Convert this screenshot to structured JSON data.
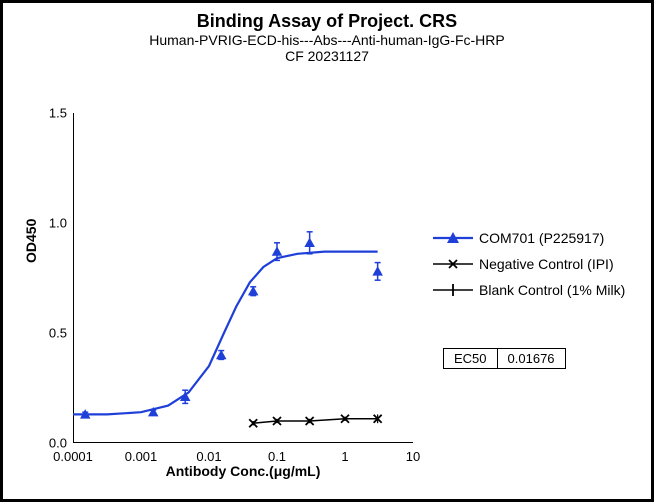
{
  "titles": {
    "main": "Binding Assay of Project. CRS",
    "sub": "Human-PVRIG-ECD-his---Abs---Anti-human-IgG-Fc-HRP",
    "sub2": "CF 20231127"
  },
  "axes": {
    "ylabel": "OD450",
    "xlabel": "Antibody Conc.(μg/mL)",
    "ylim": [
      0,
      1.5
    ],
    "yticks": [
      0.0,
      0.5,
      1.0,
      1.5
    ],
    "ytick_labels": [
      "0.0",
      "0.5",
      "1.0",
      "1.5"
    ],
    "xlim_log": [
      -4,
      1
    ],
    "xticks_log": [
      -4,
      -3,
      -2,
      -1,
      0,
      1
    ],
    "xtick_labels": [
      "0.0001",
      "0.001",
      "0.01",
      "0.1",
      "1",
      "10"
    ]
  },
  "series": {
    "com701": {
      "label": "COM701 (P225917)",
      "color": "#1f3fd9",
      "marker": "triangle",
      "points": [
        {
          "logx": -3.82,
          "y": 0.13,
          "err": 0.01
        },
        {
          "logx": -2.82,
          "y": 0.14,
          "err": 0.01
        },
        {
          "logx": -2.35,
          "y": 0.21,
          "err": 0.03
        },
        {
          "logx": -1.82,
          "y": 0.4,
          "err": 0.02
        },
        {
          "logx": -1.35,
          "y": 0.69,
          "err": 0.02
        },
        {
          "logx": -1.0,
          "y": 0.87,
          "err": 0.04
        },
        {
          "logx": -0.52,
          "y": 0.91,
          "err": 0.05
        },
        {
          "logx": 0.48,
          "y": 0.78,
          "err": 0.04
        }
      ],
      "fit": [
        {
          "logx": -4.0,
          "y": 0.13
        },
        {
          "logx": -3.5,
          "y": 0.13
        },
        {
          "logx": -3.0,
          "y": 0.14
        },
        {
          "logx": -2.6,
          "y": 0.17
        },
        {
          "logx": -2.3,
          "y": 0.23
        },
        {
          "logx": -2.0,
          "y": 0.35
        },
        {
          "logx": -1.78,
          "y": 0.5
        },
        {
          "logx": -1.6,
          "y": 0.62
        },
        {
          "logx": -1.4,
          "y": 0.73
        },
        {
          "logx": -1.2,
          "y": 0.8
        },
        {
          "logx": -1.0,
          "y": 0.84
        },
        {
          "logx": -0.7,
          "y": 0.86
        },
        {
          "logx": -0.3,
          "y": 0.87
        },
        {
          "logx": 0.48,
          "y": 0.87
        }
      ]
    },
    "neg": {
      "label": "Negative Control (IPI)",
      "color": "#000000",
      "marker": "x",
      "points": [
        {
          "logx": -1.35,
          "y": 0.09,
          "err": 0.01
        },
        {
          "logx": -1.0,
          "y": 0.1,
          "err": 0.01
        },
        {
          "logx": -0.52,
          "y": 0.1,
          "err": 0.01
        },
        {
          "logx": 0.0,
          "y": 0.11,
          "err": 0.01
        },
        {
          "logx": 0.48,
          "y": 0.11,
          "err": 0.02
        }
      ]
    },
    "blank": {
      "label": "Blank Control (1% Milk)",
      "color": "#000000",
      "marker": "plus-line"
    }
  },
  "ec50": {
    "label": "EC50",
    "value": "0.01676"
  },
  "plot_style": {
    "axis_color": "#000000",
    "axis_width": 2,
    "line_width": 2.2,
    "marker_size": 7,
    "background": "#ffffff",
    "title_fontsize": 18,
    "sub_fontsize": 14,
    "label_fontsize": 14,
    "tick_fontsize": 13
  }
}
